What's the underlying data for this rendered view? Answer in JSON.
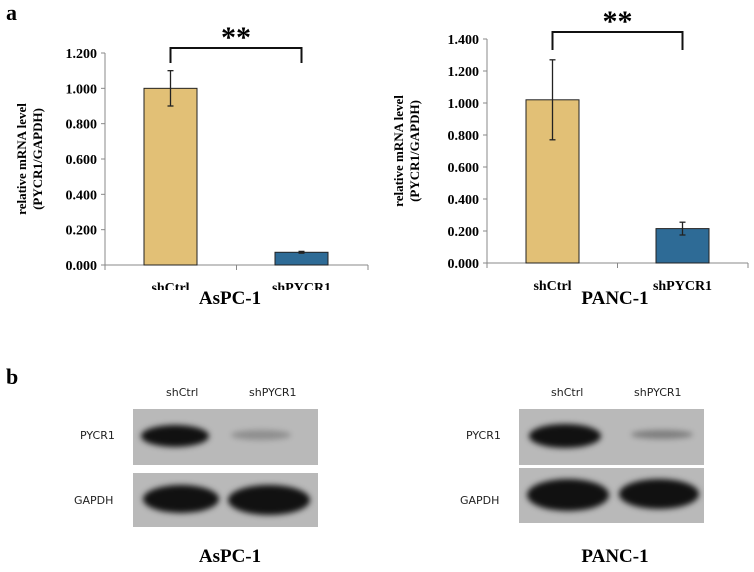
{
  "panels": {
    "a": "a",
    "b": "b"
  },
  "chart_data": [
    {
      "type": "bar",
      "title": "AsPC-1",
      "ylabel_line1": "relative mRNA level",
      "ylabel_line2": "(PYCR1/GAPDH)",
      "categories": [
        "shCtrl",
        "shPYCR1"
      ],
      "values": [
        1.0,
        0.072
      ],
      "errors": [
        0.1,
        0.005
      ],
      "colors": [
        "#E2C076",
        "#2E6B96"
      ],
      "ylim": [
        0,
        1.2
      ],
      "yticks": [
        "0.000",
        "0.200",
        "0.400",
        "0.600",
        "0.800",
        "1.000",
        "1.200"
      ],
      "significance": "**",
      "grid": false
    },
    {
      "type": "bar",
      "title": "PANC-1",
      "ylabel_line1": "relative mRNA level",
      "ylabel_line2": "(PYCR1/GAPDH)",
      "categories": [
        "shCtrl",
        "shPYCR1"
      ],
      "values": [
        1.02,
        0.215
      ],
      "errors": [
        0.25,
        0.04
      ],
      "colors": [
        "#E2C076",
        "#2E6B96"
      ],
      "ylim": [
        0,
        1.4
      ],
      "yticks": [
        "0.000",
        "0.200",
        "0.400",
        "0.600",
        "0.800",
        "1.000",
        "1.200",
        "1.400"
      ],
      "significance": "**",
      "grid": false
    }
  ],
  "blots": [
    {
      "title": "AsPC-1",
      "lanes": [
        "shCtrl",
        "shPYCR1"
      ],
      "rows": [
        "PYCR1",
        "GAPDH"
      ]
    },
    {
      "title": "PANC-1",
      "lanes": [
        "shCtrl",
        "shPYCR1"
      ],
      "rows": [
        "PYCR1",
        "GAPDH"
      ]
    }
  ]
}
